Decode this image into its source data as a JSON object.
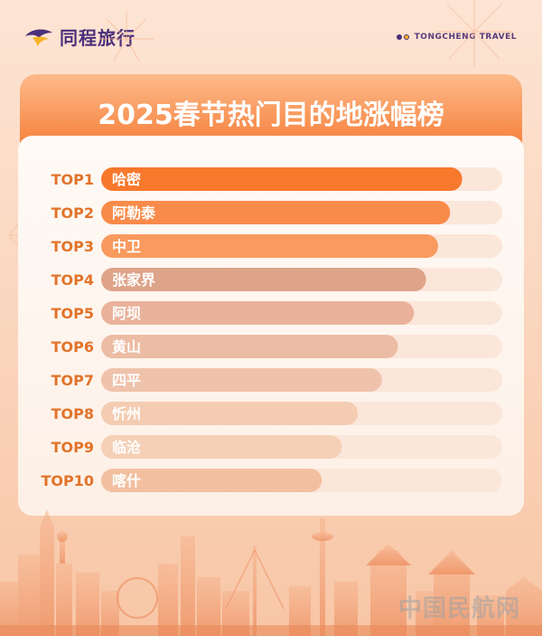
{
  "brand": {
    "name": "同程旅行",
    "name_en": "TONGCHENG TRAVEL"
  },
  "colors": {
    "brand_purple": "#4a2f7a",
    "accent_orange": "#f57a33",
    "rank_text": "#e2732a",
    "track": "#fbe6da"
  },
  "watermark": "中国民航网",
  "chart_data": {
    "type": "bar",
    "orientation": "horizontal",
    "title": "2025春节热门目的地涨幅榜",
    "ranks": [
      "TOP1",
      "TOP2",
      "TOP3",
      "TOP4",
      "TOP5",
      "TOP6",
      "TOP7",
      "TOP8",
      "TOP9",
      "TOP10"
    ],
    "categories": [
      "哈密",
      "阿勒泰",
      "中卫",
      "张家界",
      "阿坝",
      "黄山",
      "四平",
      "忻州",
      "临沧",
      "喀什"
    ],
    "values": [
      0.9,
      0.87,
      0.84,
      0.81,
      0.78,
      0.74,
      0.7,
      0.64,
      0.6,
      0.55
    ],
    "value_unit": "fraction of full track",
    "bar_colors": [
      "#f8782c",
      "#f98b4a",
      "#f99a5e",
      "#dea48a",
      "#eab29a",
      "#ecbca4",
      "#efc3ab",
      "#f4ccb2",
      "#f5d0b6",
      "#f3c09f"
    ],
    "axes_visible": false,
    "grid": false,
    "legend": "none"
  }
}
